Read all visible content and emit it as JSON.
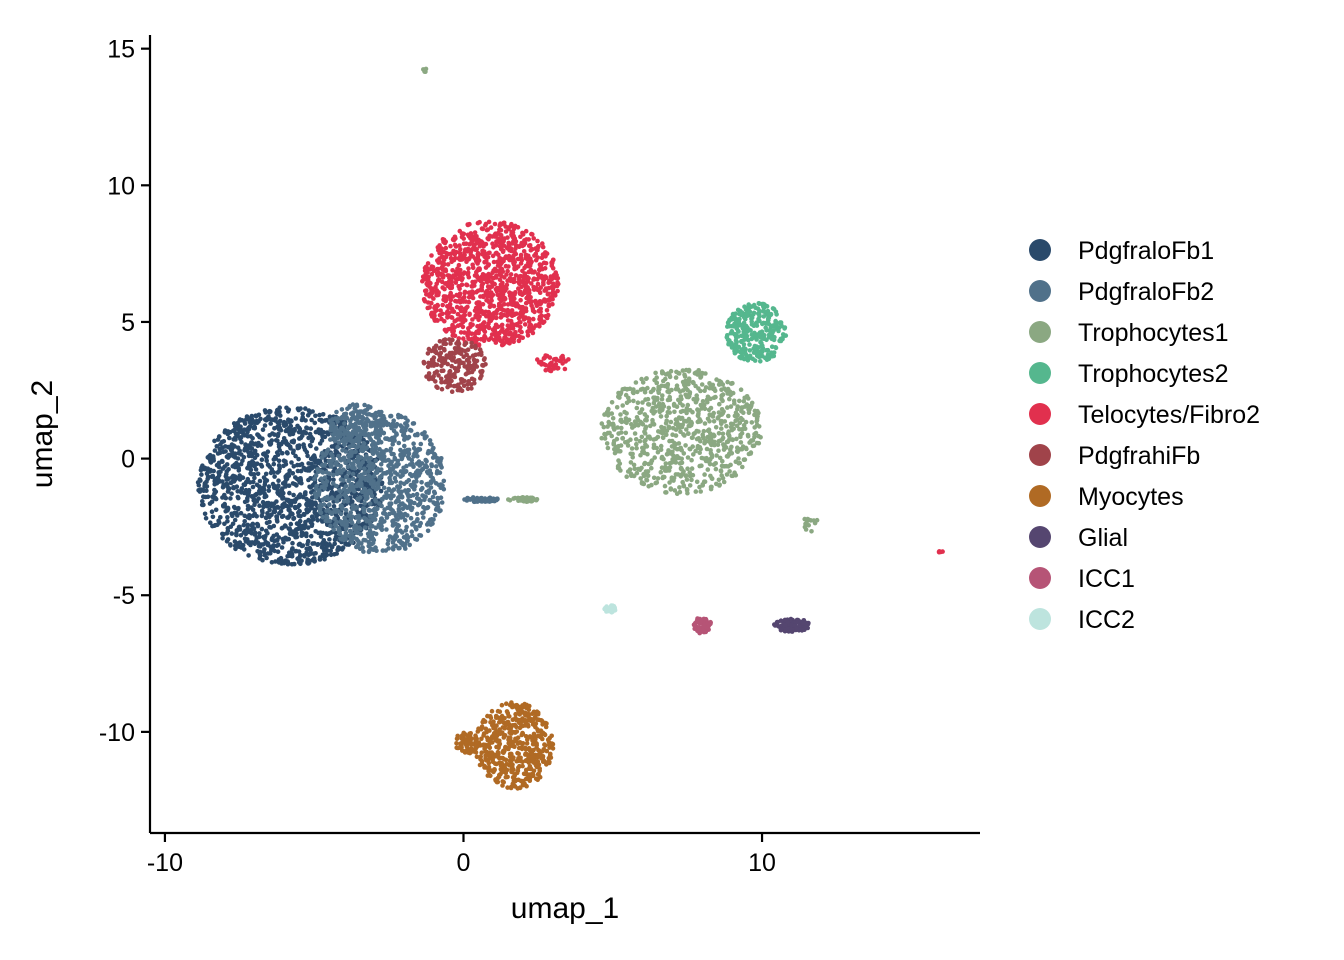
{
  "chart_data": {
    "type": "scatter",
    "title": "",
    "xlabel": "umap_1",
    "ylabel": "umap_2",
    "xlim": [
      -10.5,
      17.3
    ],
    "ylim": [
      -13.7,
      15.5
    ],
    "xticks": [
      -10,
      0,
      10
    ],
    "xtick_labels": [
      "-10",
      "0",
      "10"
    ],
    "yticks": [
      -10,
      -5,
      0,
      5,
      10,
      15
    ],
    "ytick_labels": [
      "-10",
      "-5",
      "0",
      "5",
      "10",
      "15"
    ],
    "grid": false,
    "legend_position": "right",
    "series": [
      {
        "name": "PdgfraloFb1",
        "color": "#2A4A6B",
        "clusters": [
          {
            "cx": -5.8,
            "cy": -1.0,
            "rx": 3.1,
            "ry": 2.9,
            "n": 1500
          }
        ]
      },
      {
        "name": "PdgfraloFb2",
        "color": "#50718A",
        "clusters": [
          {
            "cx": -2.8,
            "cy": -0.9,
            "rx": 2.2,
            "ry": 2.6,
            "n": 900
          },
          {
            "cx": -3.5,
            "cy": 1.2,
            "rx": 1.0,
            "ry": 0.8,
            "n": 150
          },
          {
            "cx": 0.6,
            "cy": -1.5,
            "rx": 0.6,
            "ry": 0.1,
            "n": 50
          }
        ]
      },
      {
        "name": "Trophocytes1",
        "color": "#8BA882",
        "clusters": [
          {
            "cx": 7.3,
            "cy": 1.0,
            "rx": 2.7,
            "ry": 2.3,
            "n": 800
          },
          {
            "cx": 2.0,
            "cy": -1.5,
            "rx": 0.5,
            "ry": 0.1,
            "n": 40
          },
          {
            "cx": -1.3,
            "cy": 14.2,
            "rx": 0.08,
            "ry": 0.08,
            "n": 5
          },
          {
            "cx": 11.6,
            "cy": -2.4,
            "rx": 0.3,
            "ry": 0.3,
            "n": 15
          }
        ]
      },
      {
        "name": "Trophocytes2",
        "color": "#55B78E",
        "clusters": [
          {
            "cx": 9.8,
            "cy": 4.6,
            "rx": 1.0,
            "ry": 1.1,
            "n": 300
          }
        ]
      },
      {
        "name": "Telocytes/Fibro2",
        "color": "#E1304E",
        "clusters": [
          {
            "cx": 0.9,
            "cy": 6.4,
            "rx": 2.3,
            "ry": 2.3,
            "n": 1100
          },
          {
            "cx": 3.0,
            "cy": 3.5,
            "rx": 0.6,
            "ry": 0.3,
            "n": 40
          },
          {
            "cx": 16.0,
            "cy": -3.4,
            "rx": 0.1,
            "ry": 0.05,
            "n": 5
          }
        ]
      },
      {
        "name": "PdgfrahiFb",
        "color": "#A0434A",
        "clusters": [
          {
            "cx": -0.3,
            "cy": 3.4,
            "rx": 1.1,
            "ry": 1.0,
            "n": 200
          }
        ]
      },
      {
        "name": "Myocytes",
        "color": "#B06A24",
        "clusters": [
          {
            "cx": 1.7,
            "cy": -10.5,
            "rx": 1.3,
            "ry": 1.6,
            "n": 500
          },
          {
            "cx": 0.1,
            "cy": -10.4,
            "rx": 0.4,
            "ry": 0.4,
            "n": 60
          }
        ]
      },
      {
        "name": "Glial",
        "color": "#554670",
        "clusters": [
          {
            "cx": 11.0,
            "cy": -6.1,
            "rx": 0.6,
            "ry": 0.25,
            "n": 120
          }
        ]
      },
      {
        "name": "ICC1",
        "color": "#B65476",
        "clusters": [
          {
            "cx": 8.0,
            "cy": -6.1,
            "rx": 0.3,
            "ry": 0.3,
            "n": 60
          }
        ]
      },
      {
        "name": "ICC2",
        "color": "#BDE4DE",
        "clusters": [
          {
            "cx": 4.9,
            "cy": -5.5,
            "rx": 0.2,
            "ry": 0.15,
            "n": 25
          }
        ]
      }
    ]
  }
}
